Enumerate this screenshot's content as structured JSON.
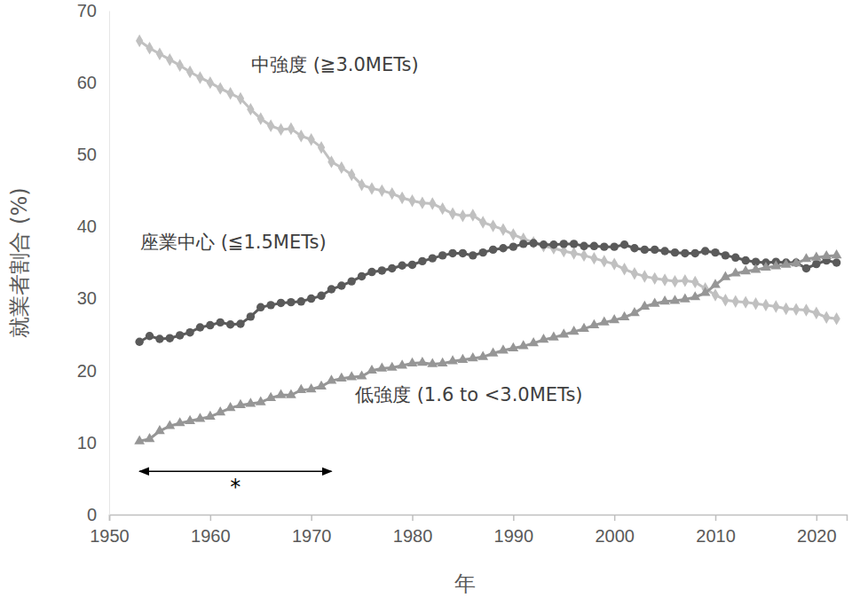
{
  "chart_data": {
    "type": "line",
    "x_label": "年",
    "y_label": "就業者割合 (%)",
    "xlim": [
      1950,
      2023
    ],
    "ylim": [
      0,
      70
    ],
    "xticks": [
      1950,
      1960,
      1970,
      1980,
      1990,
      2000,
      2010,
      2020
    ],
    "yticks": [
      0,
      10,
      20,
      30,
      40,
      50,
      60,
      70
    ],
    "grid": false,
    "x": [
      1953,
      1954,
      1955,
      1956,
      1957,
      1958,
      1959,
      1960,
      1961,
      1962,
      1963,
      1964,
      1965,
      1966,
      1967,
      1968,
      1969,
      1970,
      1971,
      1972,
      1973,
      1974,
      1975,
      1976,
      1977,
      1978,
      1979,
      1980,
      1981,
      1982,
      1983,
      1984,
      1985,
      1986,
      1987,
      1988,
      1989,
      1990,
      1991,
      1992,
      1993,
      1994,
      1995,
      1996,
      1997,
      1998,
      1999,
      2000,
      2001,
      2002,
      2003,
      2004,
      2005,
      2006,
      2007,
      2008,
      2009,
      2010,
      2011,
      2012,
      2013,
      2014,
      2015,
      2016,
      2017,
      2018,
      2019,
      2020,
      2021,
      2022
    ],
    "series": [
      {
        "name": "中強度 (≧3.0METs)",
        "color": "#c0c0c0",
        "marker": "diamond",
        "values": [
          65.8,
          64.8,
          64.0,
          63.2,
          62.4,
          61.5,
          60.7,
          60.0,
          59.2,
          58.5,
          57.8,
          56.3,
          55.0,
          54.0,
          53.5,
          53.6,
          52.6,
          52.1,
          51.0,
          49.0,
          48.2,
          47.2,
          45.8,
          45.3,
          45.0,
          44.6,
          44.0,
          43.6,
          43.3,
          43.2,
          42.5,
          41.8,
          41.5,
          41.6,
          40.6,
          40.1,
          39.6,
          38.9,
          38.3,
          37.8,
          37.3,
          37.0,
          36.6,
          36.3,
          36.0,
          35.6,
          35.2,
          34.8,
          34.1,
          33.5,
          33.1,
          32.8,
          32.6,
          32.4,
          32.5,
          32.3,
          31.4,
          30.5,
          29.8,
          29.6,
          29.5,
          29.3,
          29.1,
          28.9,
          28.6,
          28.5,
          28.4,
          28.0,
          27.4,
          27.2
        ]
      },
      {
        "name": "座業中心 (≦1.5METs)",
        "color": "#5a5a5a",
        "marker": "circle",
        "values": [
          24.0,
          24.8,
          24.4,
          24.5,
          24.9,
          25.3,
          26.0,
          26.3,
          26.7,
          26.4,
          26.5,
          27.5,
          28.8,
          29.1,
          29.4,
          29.5,
          29.6,
          30.0,
          30.4,
          31.3,
          31.8,
          32.4,
          33.1,
          33.7,
          33.9,
          34.2,
          34.6,
          34.7,
          35.2,
          35.6,
          36.0,
          36.3,
          36.3,
          36.0,
          36.4,
          36.8,
          37.0,
          37.2,
          37.6,
          37.7,
          37.5,
          37.5,
          37.6,
          37.6,
          37.3,
          37.3,
          37.2,
          37.2,
          37.5,
          37.0,
          36.8,
          36.8,
          36.6,
          36.4,
          36.3,
          36.3,
          36.6,
          36.4,
          36.0,
          35.7,
          35.3,
          35.1,
          35.0,
          35.1,
          35.0,
          35.0,
          34.2,
          34.8,
          35.3,
          35.0
        ]
      },
      {
        "name": "低強度 (1.6 to <3.0METs)",
        "color": "#969696",
        "marker": "triangle",
        "values": [
          10.2,
          10.5,
          11.6,
          12.3,
          12.7,
          13.0,
          13.3,
          13.6,
          14.2,
          14.8,
          15.2,
          15.4,
          15.6,
          16.2,
          16.6,
          16.6,
          17.3,
          17.4,
          17.8,
          18.6,
          18.9,
          19.1,
          19.2,
          20.0,
          20.3,
          20.4,
          20.7,
          21.0,
          21.1,
          20.9,
          21.0,
          21.3,
          21.5,
          21.7,
          21.9,
          22.4,
          22.8,
          23.1,
          23.4,
          23.8,
          24.3,
          24.6,
          25.0,
          25.4,
          25.8,
          26.3,
          26.7,
          27.0,
          27.4,
          28.0,
          28.9,
          29.3,
          29.6,
          29.7,
          29.9,
          30.2,
          30.8,
          31.9,
          33.0,
          33.5,
          33.8,
          34.0,
          34.3,
          34.5,
          34.7,
          34.9,
          35.5,
          35.7,
          35.9,
          36.0
        ]
      }
    ],
    "annotations": [
      {
        "text": "*",
        "x": [
          1953,
          1972
        ],
        "y": 6
      }
    ]
  }
}
